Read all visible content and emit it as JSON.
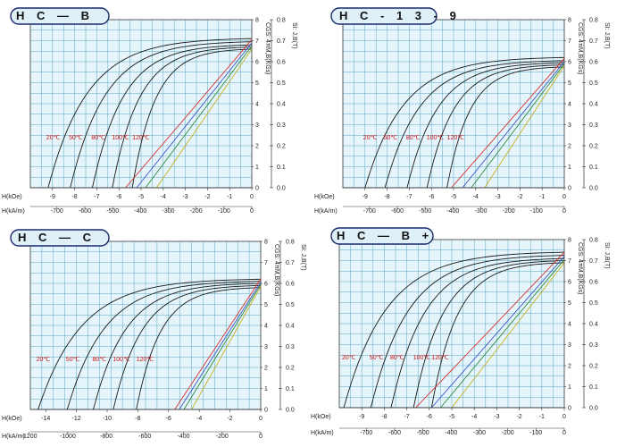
{
  "chart_data": [
    {
      "type": "line",
      "title": "H C — B",
      "xlabel_koe": "H(kOe)",
      "xlabel_kam": "H(kA/m)",
      "ylabel_left": "CGS: 4πM,B(KGs)",
      "ylabel_right": "SI: J,B(T)",
      "xlim_koe": [
        -10,
        0
      ],
      "ylim_kgs": [
        0,
        8
      ],
      "x_ticks_koe": [
        -9,
        -8,
        -7,
        -6,
        -5,
        -4,
        -3,
        -2,
        -1,
        0
      ],
      "x_ticks_kam": [
        -700,
        -600,
        -500,
        -400,
        -300,
        -200,
        -100,
        0
      ],
      "y_ticks_kgs": [
        0,
        1,
        2,
        3,
        4,
        5,
        6,
        7,
        8
      ],
      "y_ticks_t": [
        "0.0",
        "0.1",
        "0.2",
        "0.3",
        "0.4",
        "0.5",
        "0.6",
        "0.7",
        "0.8"
      ],
      "temperatures": [
        "20℃",
        "50℃",
        "80℃",
        "100℃",
        "120℃"
      ],
      "grid": true,
      "intrinsic_curves": [
        {
          "hcj": -9.2,
          "br": 7.1
        },
        {
          "hcj": -8.2,
          "br": 6.95
        },
        {
          "hcj": -7.2,
          "br": 6.8
        },
        {
          "hcj": -6.3,
          "br": 6.7
        },
        {
          "hcj": -5.4,
          "br": 6.6
        }
      ],
      "normal_curves": [
        {
          "color": "#d83030",
          "br": 7.05,
          "hcb": -5.7
        },
        {
          "color": "#3a55c8",
          "br": 6.9,
          "hcb": -5.2
        },
        {
          "color": "#2e8a3a",
          "br": 6.75,
          "hcb": -4.8
        },
        {
          "color": "#c8b020",
          "br": 6.6,
          "hcb": -4.3
        }
      ]
    },
    {
      "type": "line",
      "title": "H C - 1 3 - 9",
      "xlabel_koe": "H(kOe)",
      "xlabel_kam": "H(kA/m)",
      "ylabel_left": "CGS: 4πM,B(KGs)",
      "ylabel_right": "SI: J,B(T)",
      "xlim_koe": [
        -10,
        0
      ],
      "ylim_kgs": [
        0,
        8
      ],
      "x_ticks_koe": [
        -9,
        -8,
        -7,
        -6,
        -5,
        -4,
        -3,
        -2,
        -1,
        0
      ],
      "x_ticks_kam": [
        -700,
        -600,
        -500,
        -400,
        -300,
        -200,
        -100,
        0
      ],
      "y_ticks_kgs": [
        0,
        1,
        2,
        3,
        4,
        5,
        6,
        7,
        8
      ],
      "y_ticks_t": [
        "0.0",
        "0.1",
        "0.2",
        "0.3",
        "0.4",
        "0.5",
        "0.6",
        "0.7",
        "0.8"
      ],
      "temperatures": [
        "20℃",
        "50℃",
        "80℃",
        "100℃",
        "120℃"
      ],
      "grid": true,
      "intrinsic_curves": [
        {
          "hcj": -9.0,
          "br": 6.2
        },
        {
          "hcj": -8.1,
          "br": 6.05
        },
        {
          "hcj": -7.1,
          "br": 5.95
        },
        {
          "hcj": -6.2,
          "br": 5.85
        },
        {
          "hcj": -5.3,
          "br": 5.75
        }
      ],
      "normal_curves": [
        {
          "color": "#d83030",
          "br": 6.15,
          "hcb": -5.1
        },
        {
          "color": "#3a55c8",
          "br": 6.0,
          "hcb": -4.6
        },
        {
          "color": "#2e8a3a",
          "br": 5.9,
          "hcb": -4.2
        },
        {
          "color": "#c8b020",
          "br": 5.8,
          "hcb": -3.6
        }
      ]
    },
    {
      "type": "line",
      "title": "H C — C",
      "xlabel_koe": "H(kOe)",
      "xlabel_kam": "H(kA/m)",
      "ylabel_left": "CGS: 4πM,B(KGs)",
      "ylabel_right": "SI: J,B(T)",
      "xlim_koe": [
        -15,
        0
      ],
      "ylim_kgs": [
        0,
        8
      ],
      "x_ticks_koe": [
        -14,
        -12,
        -10,
        -8,
        -6,
        -4,
        -2,
        0
      ],
      "x_ticks_kam": [
        -1200,
        -1000,
        -800,
        -600,
        -400,
        -200,
        0
      ],
      "y_ticks_kgs": [
        0,
        1,
        2,
        3,
        4,
        5,
        6,
        7,
        8
      ],
      "y_ticks_t": [
        "0.0",
        "0.1",
        "0.2",
        "0.3",
        "0.4",
        "0.5",
        "0.6",
        "0.7",
        "0.8"
      ],
      "temperatures": [
        "20℃",
        "50℃",
        "80℃",
        "100℃",
        "120℃"
      ],
      "grid": true,
      "intrinsic_curves": [
        {
          "hcj": -14.5,
          "br": 6.2
        },
        {
          "hcj": -12.6,
          "br": 6.1
        },
        {
          "hcj": -10.9,
          "br": 6.0
        },
        {
          "hcj": -9.6,
          "br": 5.9
        },
        {
          "hcj": -8.1,
          "br": 5.8
        }
      ],
      "normal_curves": [
        {
          "color": "#d83030",
          "br": 6.2,
          "hcb": -5.6
        },
        {
          "color": "#3a55c8",
          "br": 6.05,
          "hcb": -5.3
        },
        {
          "color": "#2e8a3a",
          "br": 5.95,
          "hcb": -5.0
        },
        {
          "color": "#c8b020",
          "br": 5.85,
          "hcb": -4.5
        }
      ]
    },
    {
      "type": "line",
      "title": "H C — B +",
      "xlabel_koe": "H(kOe)",
      "xlabel_kam": "H(kA/m)",
      "ylabel_left": "CGS: 4πM,B(KGs)",
      "ylabel_right": "SI: J,B(T)",
      "xlim_koe": [
        -10,
        0
      ],
      "ylim_kgs": [
        0,
        8
      ],
      "x_ticks_koe": [
        -9,
        -8,
        -7,
        -6,
        -5,
        -4,
        -3,
        -2,
        -1,
        0
      ],
      "x_ticks_kam": [
        -700,
        -600,
        -500,
        -400,
        -300,
        -200,
        -100,
        0
      ],
      "y_ticks_kgs": [
        0,
        1,
        2,
        3,
        4,
        5,
        6,
        7,
        8
      ],
      "y_ticks_t": [
        "0.0",
        "0.1",
        "0.2",
        "0.3",
        "0.4",
        "0.5",
        "0.6",
        "0.7",
        "0.8"
      ],
      "temperatures": [
        "20℃",
        "50℃",
        "80℃",
        "100℃",
        "120℃"
      ],
      "grid": true,
      "intrinsic_curves": [
        {
          "hcj": -9.8,
          "br": 7.4
        },
        {
          "hcj": -8.6,
          "br": 7.25
        },
        {
          "hcj": -7.7,
          "br": 7.1
        },
        {
          "hcj": -6.7,
          "br": 7.0
        },
        {
          "hcj": -5.9,
          "br": 6.9
        }
      ],
      "normal_curves": [
        {
          "color": "#d83030",
          "br": 7.4,
          "hcb": -6.6
        },
        {
          "color": "#3a55c8",
          "br": 7.2,
          "hcb": -5.9
        },
        {
          "color": "#2e8a3a",
          "br": 7.05,
          "hcb": -5.5
        },
        {
          "color": "#c8b020",
          "br": 6.9,
          "hcb": -5.0
        }
      ]
    }
  ]
}
